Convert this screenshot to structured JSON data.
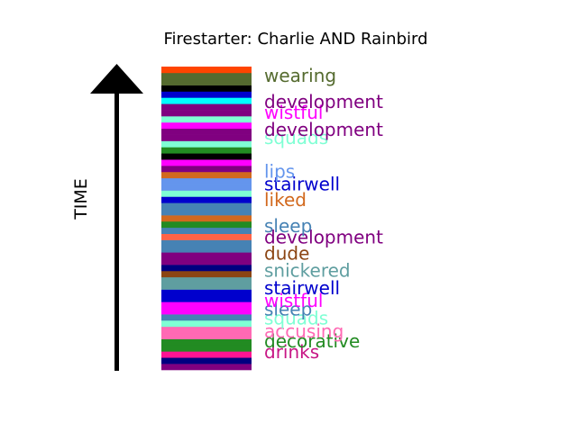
{
  "chart_data": {
    "type": "bar",
    "title": "Firestarter: Charlie AND Rainbird",
    "ylabel": "TIME",
    "stack_colors": [
      "#800080",
      "#000080",
      "#FF1493",
      "#228B22",
      "#228B22",
      "#FF69B4",
      "#FF69B4",
      "#7FFFD4",
      "#4682B4",
      "#FF00FF",
      "#FF00FF",
      "#0000CD",
      "#0000CD",
      "#5F9EA0",
      "#5F9EA0",
      "#8B4513",
      "#000080",
      "#800080",
      "#800080",
      "#4682B4",
      "#4682B4",
      "#FF6347",
      "#4682B4",
      "#228B22",
      "#D2691E",
      "#4682B4",
      "#4682B4",
      "#0000CD",
      "#7FFFD4",
      "#6495ED",
      "#6495ED",
      "#D2691E",
      "#800080",
      "#FF00FF",
      "#000000",
      "#228B22",
      "#7FFFD4",
      "#800080",
      "#800080",
      "#FF00FF",
      "#7FFFD4",
      "#800080",
      "#800080",
      "#00FFFF",
      "#0000CD",
      "#000000",
      "#556B2F",
      "#556B2F",
      "#FF4500"
    ],
    "words": [
      {
        "text": "drinks",
        "color": "#C71585",
        "pos": 0.06
      },
      {
        "text": "decorative",
        "color": "#228B22",
        "pos": 0.095
      },
      {
        "text": "accusing",
        "color": "#FF69B4",
        "pos": 0.128
      },
      {
        "text": "squads",
        "color": "#7FFFD4",
        "pos": 0.17
      },
      {
        "text": "sleep",
        "color": "#4682B4",
        "pos": 0.2
      },
      {
        "text": "wistful",
        "color": "#FF00FF",
        "pos": 0.228
      },
      {
        "text": "stairwell",
        "color": "#0000CD",
        "pos": 0.27
      },
      {
        "text": "snickered",
        "color": "#5F9EA0",
        "pos": 0.328
      },
      {
        "text": "dude",
        "color": "#8B4513",
        "pos": 0.384
      },
      {
        "text": "development",
        "color": "#800080",
        "pos": 0.438
      },
      {
        "text": "sleep",
        "color": "#4682B4",
        "pos": 0.475
      },
      {
        "text": "liked",
        "color": "#D2691E",
        "pos": 0.561
      },
      {
        "text": "stairwell",
        "color": "#0000CD",
        "pos": 0.613
      },
      {
        "text": "lips",
        "color": "#6495ED",
        "pos": 0.655
      },
      {
        "text": "squads",
        "color": "#7FFFD4",
        "pos": 0.765
      },
      {
        "text": "development",
        "color": "#800080",
        "pos": 0.792
      },
      {
        "text": "wistful",
        "color": "#FF00FF",
        "pos": 0.848
      },
      {
        "text": "development",
        "color": "#800080",
        "pos": 0.885
      },
      {
        "text": "wearing",
        "color": "#556B2F",
        "pos": 0.97
      }
    ]
  }
}
